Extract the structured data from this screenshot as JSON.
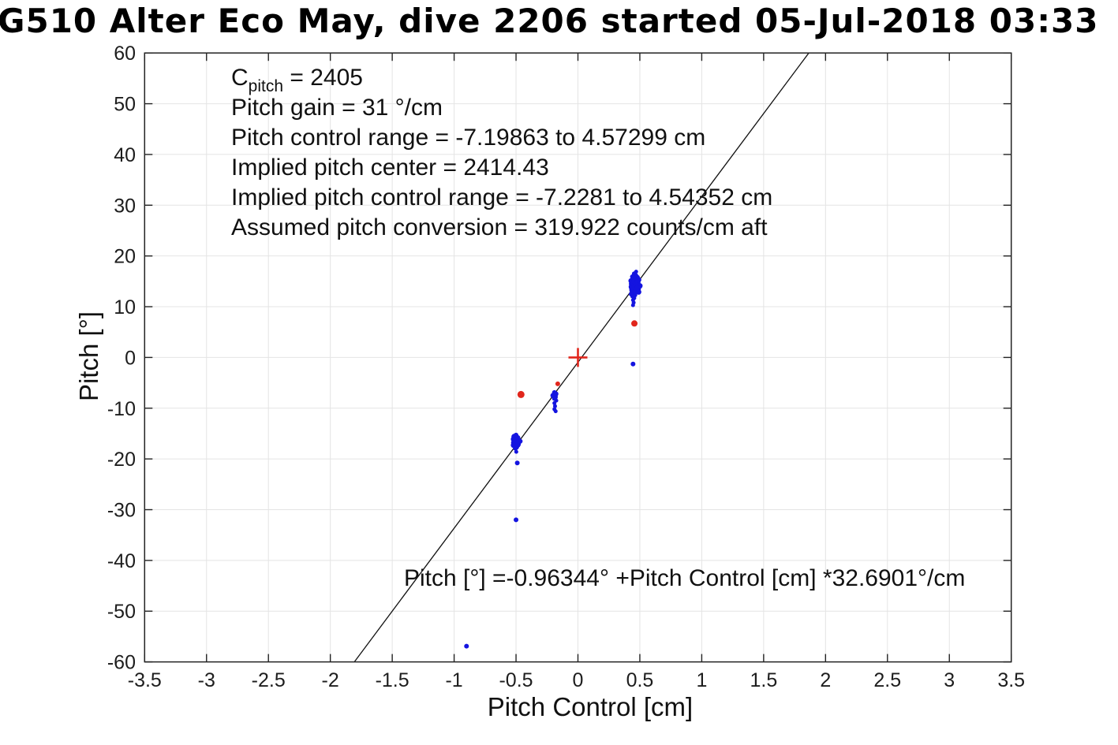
{
  "title": "G510 Alter Eco May, dive 2206 started 05-Jul-2018 03:33",
  "annotation": {
    "c_symbol": "C",
    "c_subscript": "pitch",
    "c_value": " = 2405",
    "lines": [
      "Pitch gain = 31 °/cm",
      "Pitch control range = -7.19863 to 4.57299 cm",
      "Implied pitch center = 2414.43",
      "Implied pitch control range = -7.2281 to 4.54352 cm",
      "Assumed pitch conversion = 319.922 counts/cm aft"
    ]
  },
  "equation": "Pitch [°] =-0.96344° +Pitch Control [cm] *32.6901°/cm",
  "chart_data": {
    "type": "scatter",
    "title": "G510 Alter Eco May, dive 2206 started 05-Jul-2018 03:33",
    "xlabel": "Pitch Control [cm]",
    "ylabel": "Pitch [°]",
    "xlim": [
      -3.5,
      3.5
    ],
    "ylim": [
      -60,
      60
    ],
    "xticks": [
      -3.5,
      -3,
      -2.5,
      -2,
      -1.5,
      -1,
      -0.5,
      0,
      0.5,
      1,
      1.5,
      2,
      2.5,
      3,
      3.5
    ],
    "xtick_labels": [
      "-3.5",
      "-3",
      "-2.5",
      "-2",
      "-1.5",
      "-1",
      "-0.5",
      "0",
      "0.5",
      "1",
      "1.5",
      "2",
      "2.5",
      "3",
      "3.5"
    ],
    "yticks": [
      -60,
      -50,
      -40,
      -30,
      -20,
      -10,
      0,
      10,
      20,
      30,
      40,
      50,
      60
    ],
    "ytick_labels": [
      "-60",
      "-50",
      "-40",
      "-30",
      "-20",
      "-10",
      "0",
      "10",
      "20",
      "30",
      "40",
      "50",
      "60"
    ],
    "grid": true,
    "legend": null,
    "fit_line": {
      "intercept_deg": -0.96344,
      "slope_deg_per_cm": 32.6901,
      "color": "#111111"
    },
    "origin_marker": {
      "x": 0,
      "y": 0,
      "shape": "plus",
      "color": "#e1261c"
    },
    "colors": {
      "grid": "#e4e4e4",
      "axis": "#222222",
      "blue_points": "#1414e0",
      "red_points": "#e1261c"
    },
    "series": [
      {
        "name": "pitch-observations-blue",
        "color": "#1414e0",
        "marker": "dot",
        "points": [
          [
            0.47,
            16.9,
            2.5
          ],
          [
            0.455,
            16.5,
            3
          ],
          [
            0.465,
            16.1,
            3.5
          ],
          [
            0.44,
            15.9,
            3
          ],
          [
            0.475,
            15.7,
            4
          ],
          [
            0.45,
            15.5,
            4
          ],
          [
            0.49,
            15.3,
            3.5
          ],
          [
            0.43,
            15.1,
            3.5
          ],
          [
            0.46,
            14.9,
            4.5
          ],
          [
            0.48,
            14.7,
            4
          ],
          [
            0.44,
            14.5,
            4.5
          ],
          [
            0.465,
            14.3,
            4.5
          ],
          [
            0.5,
            14.1,
            3.5
          ],
          [
            0.435,
            13.9,
            4
          ],
          [
            0.455,
            13.7,
            4.5
          ],
          [
            0.48,
            13.5,
            4.5
          ],
          [
            0.44,
            13.3,
            4
          ],
          [
            0.47,
            13.1,
            4.5
          ],
          [
            0.49,
            12.9,
            3.5
          ],
          [
            0.45,
            12.7,
            4
          ],
          [
            0.43,
            12.5,
            3
          ],
          [
            0.46,
            12.3,
            3
          ],
          [
            0.44,
            12.0,
            2.5
          ],
          [
            0.455,
            11.7,
            2.5
          ],
          [
            0.445,
            11.3,
            2.5
          ],
          [
            0.45,
            10.8,
            2.5
          ],
          [
            0.445,
            10.3,
            2.5
          ],
          [
            0.445,
            -1.3,
            3
          ],
          [
            -0.19,
            -6.9,
            3
          ],
          [
            -0.18,
            -7.2,
            3.5
          ],
          [
            -0.2,
            -7.5,
            3.5
          ],
          [
            -0.185,
            -7.8,
            3.5
          ],
          [
            -0.19,
            -8.1,
            3
          ],
          [
            -0.175,
            -8.5,
            2.5
          ],
          [
            -0.19,
            -9.0,
            2.5
          ],
          [
            -0.185,
            -9.6,
            2.5
          ],
          [
            -0.19,
            -10.2,
            2.5
          ],
          [
            -0.18,
            -10.6,
            2.5
          ],
          [
            -0.5,
            -15.3,
            3
          ],
          [
            -0.515,
            -15.6,
            3.5
          ],
          [
            -0.49,
            -15.9,
            4
          ],
          [
            -0.52,
            -16.1,
            3.5
          ],
          [
            -0.5,
            -16.4,
            4.5
          ],
          [
            -0.48,
            -16.6,
            4
          ],
          [
            -0.515,
            -16.8,
            4
          ],
          [
            -0.49,
            -17.1,
            4.5
          ],
          [
            -0.52,
            -17.3,
            3.5
          ],
          [
            -0.5,
            -17.6,
            4
          ],
          [
            -0.505,
            -17.9,
            3
          ],
          [
            -0.466,
            -16.5,
            3
          ],
          [
            -0.498,
            -18.6,
            2.5
          ],
          [
            -0.49,
            -20.8,
            3
          ],
          [
            -0.5,
            -32.0,
            3
          ],
          [
            -0.9,
            -56.9,
            3
          ]
        ]
      },
      {
        "name": "pitch-observations-red",
        "color": "#e1261c",
        "marker": "dot",
        "points": [
          [
            0.456,
            6.7,
            4
          ],
          [
            -0.163,
            -5.2,
            3
          ],
          [
            -0.46,
            -7.3,
            4.5
          ]
        ]
      }
    ]
  }
}
